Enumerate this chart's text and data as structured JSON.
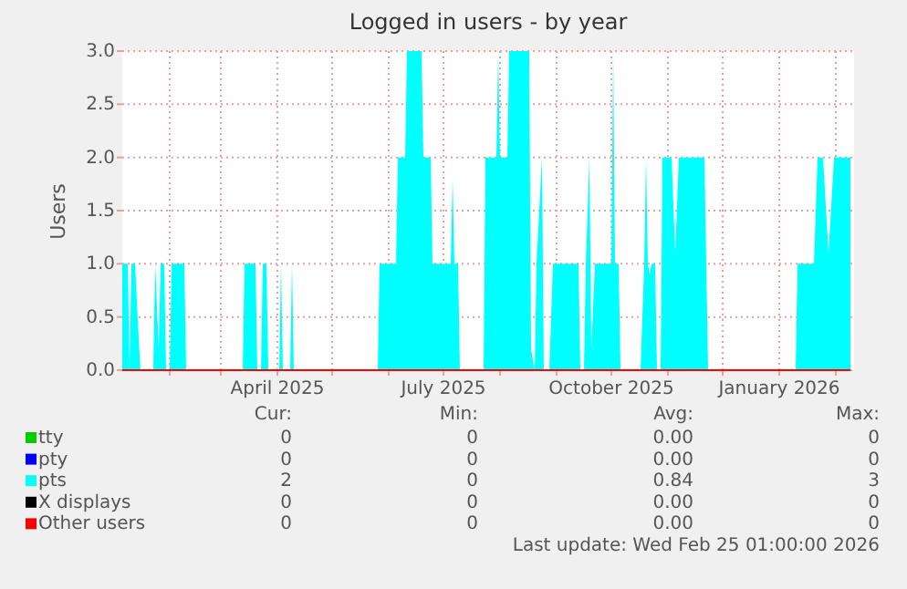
{
  "chart_data": {
    "type": "area",
    "title": "Logged in users - by year",
    "ylabel": "Users",
    "xlim": [
      "2025-01-06",
      "2026-02-11"
    ],
    "xticks": [
      {
        "value": "2025-02-01",
        "label": null
      },
      {
        "value": "2025-03-01",
        "label": null
      },
      {
        "value": "2025-04-01",
        "label": "April 2025"
      },
      {
        "value": "2025-05-01",
        "label": null
      },
      {
        "value": "2025-06-01",
        "label": null
      },
      {
        "value": "2025-07-01",
        "label": "July 2025"
      },
      {
        "value": "2025-08-01",
        "label": null
      },
      {
        "value": "2025-09-01",
        "label": null
      },
      {
        "value": "2025-10-01",
        "label": "October 2025"
      },
      {
        "value": "2025-11-01",
        "label": null
      },
      {
        "value": "2025-12-01",
        "label": null
      },
      {
        "value": "2026-01-01",
        "label": "January 2026"
      },
      {
        "value": "2026-02-01",
        "label": null
      }
    ],
    "ylim": [
      0,
      3
    ],
    "yticks": [
      {
        "value": 0,
        "label": "0.0"
      },
      {
        "value": 0.5,
        "label": "0.5"
      },
      {
        "value": 1,
        "label": "1.0"
      },
      {
        "value": 1.5,
        "label": "1.5"
      },
      {
        "value": 2,
        "label": "2.0"
      },
      {
        "value": 2.5,
        "label": "2.5"
      },
      {
        "value": 3,
        "label": "3.0"
      }
    ],
    "grid": true,
    "legend": "bottom",
    "series": [
      {
        "name": "tty",
        "color": "#00cc00"
      },
      {
        "name": "pty",
        "color": "#0000ff"
      },
      {
        "name": "pts",
        "color": "#00ffff",
        "x": [
          "2025-01-06",
          "2025-01-09",
          "2025-01-10",
          "2025-01-11",
          "2025-01-13",
          "2025-01-15",
          "2025-01-16",
          "2025-01-23",
          "2025-01-24",
          "2025-01-26",
          "2025-01-27",
          "2025-01-29",
          "2025-01-30",
          "2025-02-01",
          "2025-02-02",
          "2025-02-09",
          "2025-02-10",
          "2025-03-13",
          "2025-03-14",
          "2025-03-20",
          "2025-03-21",
          "2025-03-23",
          "2025-03-24",
          "2025-03-26",
          "2025-03-27",
          "2025-04-02",
          "2025-04-03",
          "2025-04-04",
          "2025-04-08",
          "2025-04-09",
          "2025-04-10",
          "2025-05-26",
          "2025-05-27",
          "2025-06-05",
          "2025-06-06",
          "2025-06-10",
          "2025-06-11",
          "2025-06-19",
          "2025-06-20",
          "2025-06-24",
          "2025-06-25",
          "2025-07-05",
          "2025-07-06",
          "2025-07-07",
          "2025-07-09",
          "2025-07-10",
          "2025-07-23",
          "2025-07-24",
          "2025-07-30",
          "2025-07-31",
          "2025-08-01",
          "2025-08-05",
          "2025-08-06",
          "2025-08-17",
          "2025-08-18",
          "2025-08-20",
          "2025-08-21",
          "2025-08-24",
          "2025-08-25",
          "2025-08-28",
          "2025-08-30",
          "2025-09-13",
          "2025-09-14",
          "2025-09-16",
          "2025-09-17",
          "2025-09-19",
          "2025-09-20",
          "2025-09-22",
          "2025-10-01",
          "2025-10-02",
          "2025-10-03",
          "2025-10-05",
          "2025-10-06",
          "2025-10-17",
          "2025-10-19",
          "2025-10-20",
          "2025-10-21",
          "2025-10-22",
          "2025-10-23",
          "2025-10-25",
          "2025-10-26",
          "2025-10-28",
          "2025-10-29",
          "2025-11-03",
          "2025-11-05",
          "2025-11-07",
          "2025-11-21",
          "2025-11-23",
          "2026-01-10",
          "2026-01-11",
          "2026-01-20",
          "2026-01-22",
          "2026-01-25",
          "2026-01-28",
          "2026-01-31",
          "2026-02-09"
        ],
        "values": [
          1,
          1,
          0,
          1,
          1,
          0.3,
          0,
          0,
          1,
          0.2,
          1,
          1,
          0,
          0,
          1,
          1,
          0,
          0,
          1,
          1,
          0,
          0,
          1,
          1,
          0,
          0,
          1,
          0,
          0,
          1,
          0,
          0,
          1,
          1,
          2,
          2,
          3,
          3,
          2,
          2,
          1,
          1,
          1.8,
          1,
          1,
          0,
          0,
          2,
          2,
          3,
          2,
          2,
          3,
          3,
          0.2,
          0,
          1,
          2,
          0,
          0,
          1,
          1,
          0,
          0,
          1,
          2,
          0.2,
          1,
          1,
          3,
          1,
          1,
          0,
          0,
          1,
          2,
          1,
          0.9,
          1,
          1,
          0,
          0,
          2,
          2,
          1.1,
          2,
          2,
          0,
          0,
          1,
          1,
          2,
          2,
          1.1,
          2,
          2
        ]
      },
      {
        "name": "X displays",
        "color": "#000000"
      },
      {
        "name": "Other users",
        "color": "#ff0000",
        "type": "line",
        "x": [
          "2025-01-06",
          "2026-02-09"
        ],
        "values": [
          0,
          0
        ]
      }
    ],
    "annotations": [
      "Cur:",
      "Min:",
      "Avg:",
      "Max:",
      "0",
      "0",
      "0.00",
      "0",
      "0",
      "0",
      "0.00",
      "0",
      "2",
      "0",
      "0.84",
      "3",
      "0",
      "0",
      "0.00",
      "0",
      "0",
      "0",
      "0.00",
      "0",
      "Last update: Wed Feb 25 01:00:00 2026"
    ]
  }
}
